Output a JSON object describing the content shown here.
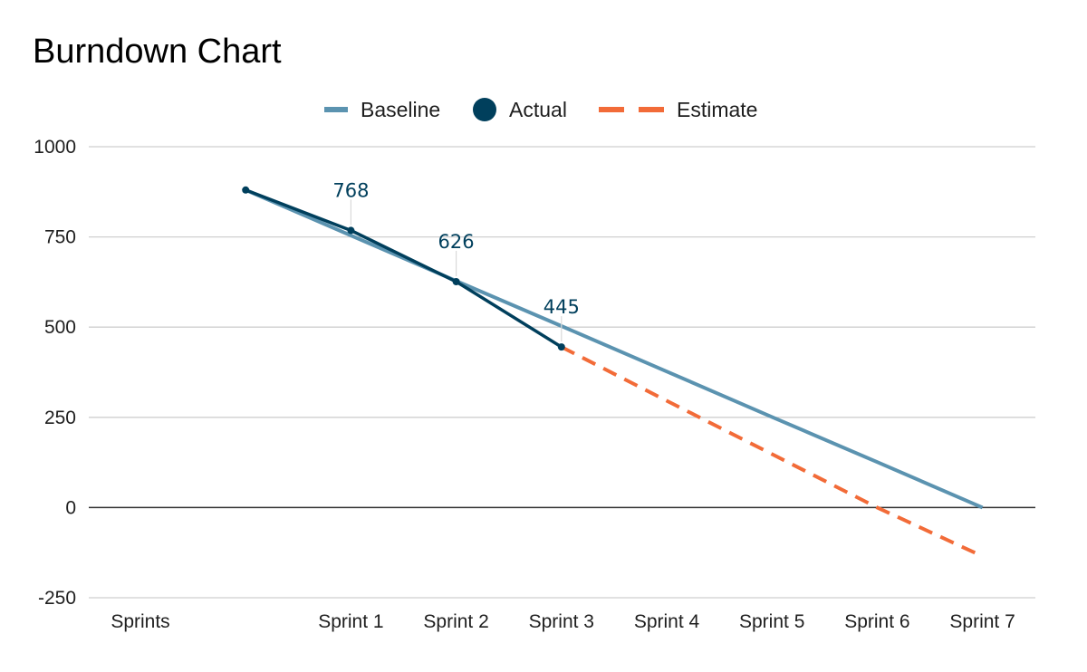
{
  "chart_data": {
    "type": "line",
    "title": "Burndown Chart",
    "xlabel": "",
    "ylabel": "",
    "categories": [
      "Sprints",
      "",
      "Sprint 1",
      "Sprint 2",
      "Sprint 3",
      "Sprint 4",
      "Sprint 5",
      "Sprint 6",
      "Sprint 7"
    ],
    "ylim": [
      -250,
      1000
    ],
    "yticks": [
      1000,
      750,
      500,
      250,
      0,
      -250
    ],
    "grid": true,
    "legend_position": "top",
    "series": [
      {
        "name": "Baseline",
        "color": "#5b93b0",
        "style": "solid",
        "values": [
          null,
          880,
          754,
          628,
          503,
          377,
          251,
          126,
          0
        ]
      },
      {
        "name": "Actual",
        "color": "#003f5c",
        "style": "solid-markers",
        "values": [
          null,
          880,
          768,
          626,
          445,
          null,
          null,
          null,
          null
        ],
        "labels": [
          null,
          null,
          "768",
          "626",
          "445",
          null,
          null,
          null,
          null
        ]
      },
      {
        "name": "Estimate",
        "color": "#f26b38",
        "style": "dashed",
        "values": [
          null,
          null,
          null,
          null,
          445,
          296,
          148,
          0,
          -135
        ]
      }
    ]
  }
}
